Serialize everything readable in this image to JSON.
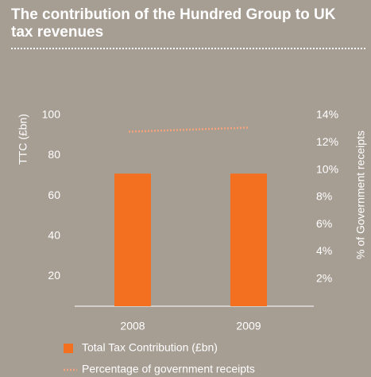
{
  "chart_data": {
    "type": "bar",
    "title": "The contribution of the Hundred Group to UK tax revenues",
    "ylabel": "TTC (£bn)",
    "y2label": "% of Government receipts",
    "categories": [
      "2008",
      "2009"
    ],
    "series": [
      {
        "name": "Total Tax Contribution (£bn)",
        "type": "bar",
        "color": "#f37021",
        "values": [
          71,
          71
        ]
      },
      {
        "name": "Percentage of government receipts",
        "type": "line",
        "color": "#f4a47c",
        "axis": "y2",
        "values": [
          12.8,
          13.1
        ]
      }
    ],
    "ylim": [
      5,
      100
    ],
    "yticks": [
      20,
      40,
      60,
      80,
      100
    ],
    "y2lim": [
      0,
      14
    ],
    "y2ticks": [
      {
        "value": 2,
        "label": "2%"
      },
      {
        "value": 4,
        "label": "4%"
      },
      {
        "value": 6,
        "label": "6%"
      },
      {
        "value": 8,
        "label": "8%"
      },
      {
        "value": 10,
        "label": "10%"
      },
      {
        "value": 12,
        "label": "12%"
      },
      {
        "value": 14,
        "label": "14%"
      }
    ]
  }
}
